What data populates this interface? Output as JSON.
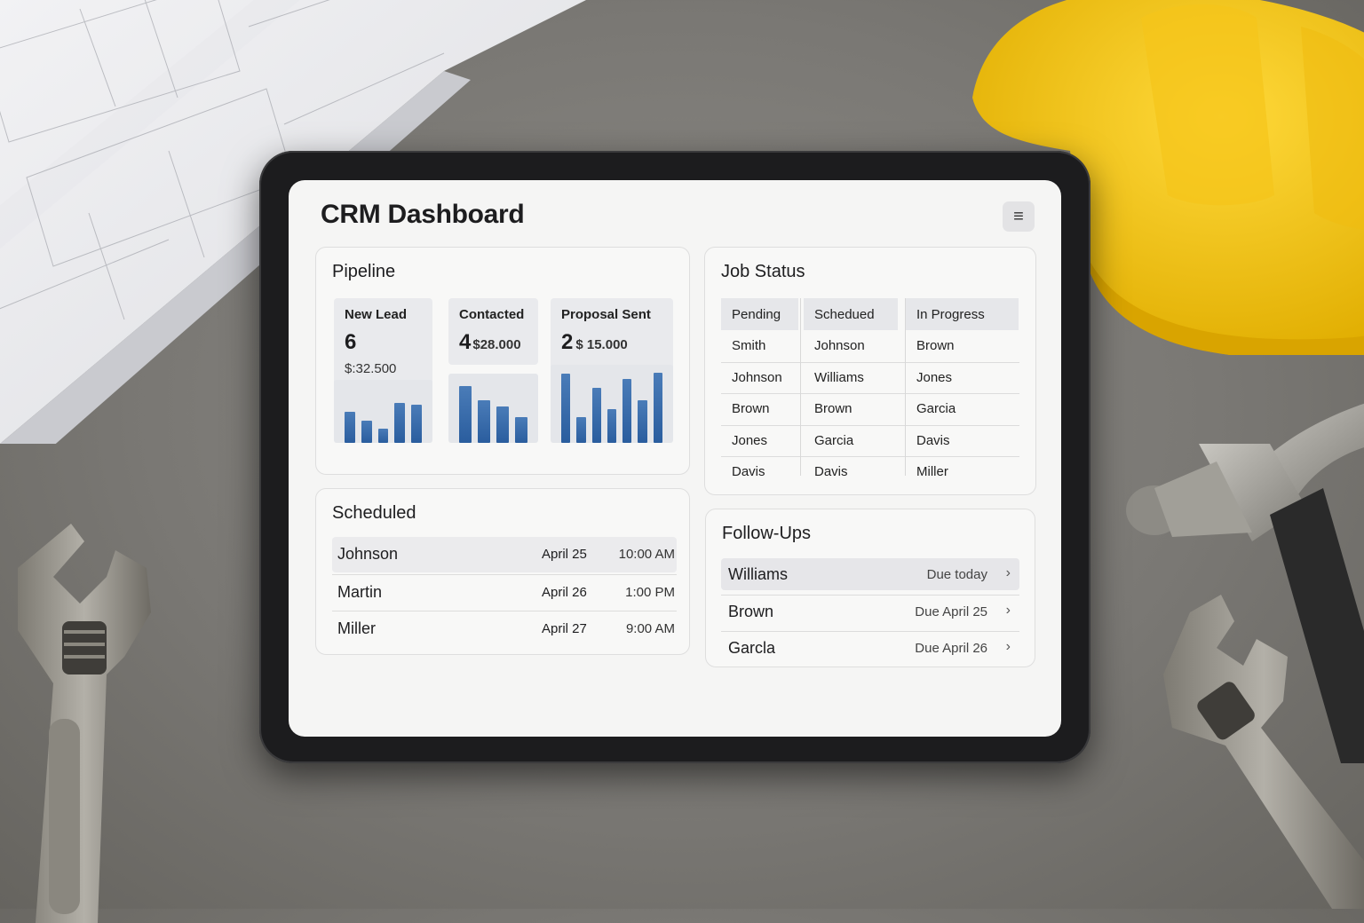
{
  "app": {
    "title": "CRM Dashboard",
    "menu_icon": "hamburger-menu-icon"
  },
  "pipeline": {
    "title": "Pipeline",
    "stages": [
      {
        "label": "New Lead",
        "count": "6",
        "amount": "$:32.500",
        "bars": [
          0.55,
          0.4,
          0.25,
          0.72,
          0.68
        ]
      },
      {
        "label": "Contacted",
        "count": "4",
        "amount": "$28.000",
        "bars": [
          0.92,
          0.68,
          0.58,
          0.42
        ]
      },
      {
        "label": "Proposal Sent",
        "count": "2",
        "amount": "$ 15.000",
        "bars": [
          0.98,
          0.36,
          0.78,
          0.48,
          0.9,
          0.6,
          0.99
        ]
      }
    ],
    "bar_color": "#2f64a6"
  },
  "job_status": {
    "title": "Job Status",
    "columns": [
      {
        "header": "Pending",
        "rows": [
          "Smith",
          "Johnson",
          "Brown",
          "Jones",
          "Davis"
        ]
      },
      {
        "header": "Schedued",
        "rows": [
          "Johnson",
          "Williams",
          "Brown",
          "Garcia",
          "Davis"
        ]
      },
      {
        "header": "In Progress",
        "rows": [
          "Brown",
          "Jones",
          "Garcia",
          "Davis",
          "Miller"
        ]
      }
    ]
  },
  "scheduled": {
    "title": "Scheduled",
    "rows": [
      {
        "name": "Johnson",
        "date": "April 25",
        "time": "10:00 AM"
      },
      {
        "name": "Martin",
        "date": "April 26",
        "time": "1:00 PM"
      },
      {
        "name": "Miller",
        "date": "April 27",
        "time": "9:00 AM"
      }
    ]
  },
  "follow_ups": {
    "title": "Follow-Ups",
    "rows": [
      {
        "name": "Williams",
        "due": "Due today"
      },
      {
        "name": "Brown",
        "due": "Due April 25"
      },
      {
        "name": "Garcla",
        "due": "Due April 26"
      }
    ]
  },
  "colors": {
    "hardhat": "#f2c414",
    "screen": "#f5f5f4",
    "bezel": "#1c1c1e"
  }
}
